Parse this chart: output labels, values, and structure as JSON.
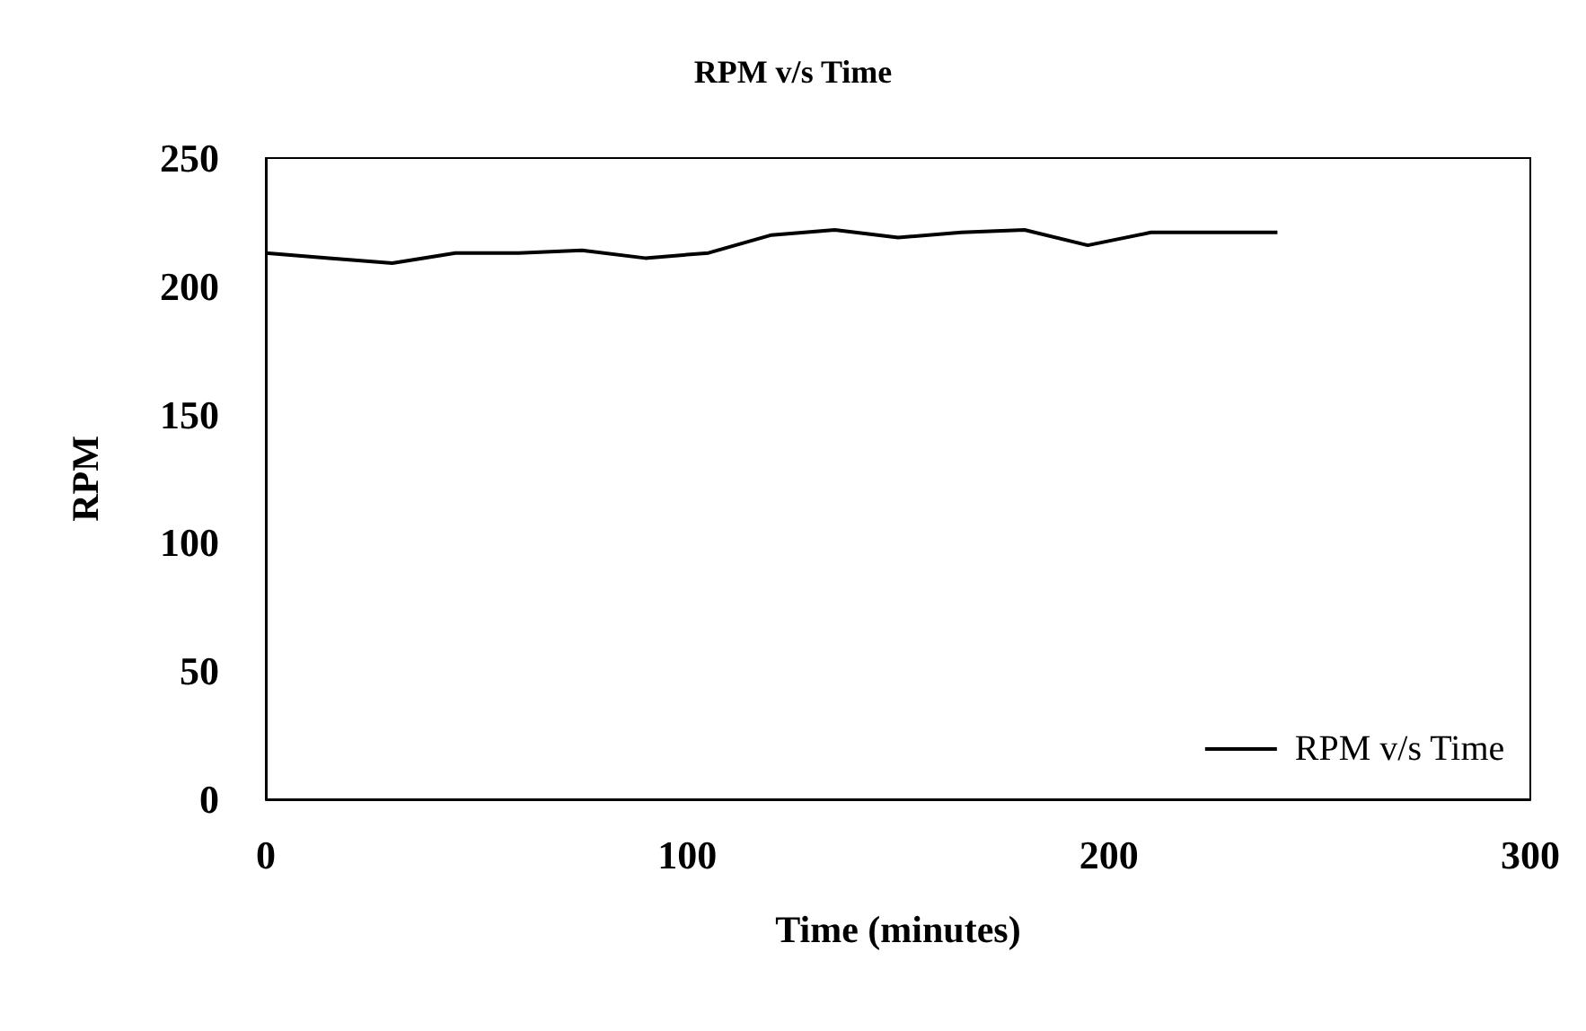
{
  "chart_data": {
    "type": "line",
    "title": "RPM v/s Time",
    "xlabel": "Time (minutes)",
    "ylabel": "RPM",
    "x": [
      0,
      15,
      30,
      45,
      60,
      75,
      90,
      105,
      120,
      135,
      150,
      165,
      180,
      195,
      210,
      225,
      240
    ],
    "series": [
      {
        "name": "RPM v/s Time",
        "color": "#000000",
        "values": [
          213,
          211,
          209,
          213,
          213,
          214,
          211,
          213,
          220,
          222,
          219,
          221,
          222,
          216,
          221,
          221,
          221
        ]
      }
    ],
    "xlim": [
      0,
      300
    ],
    "xticks": [
      0,
      100,
      200,
      300
    ],
    "ylim": [
      0,
      250
    ],
    "yticks": [
      0,
      50,
      100,
      150,
      200,
      250
    ],
    "grid": false,
    "legend": "bottom right",
    "marker": "none",
    "line_style": "solid"
  }
}
